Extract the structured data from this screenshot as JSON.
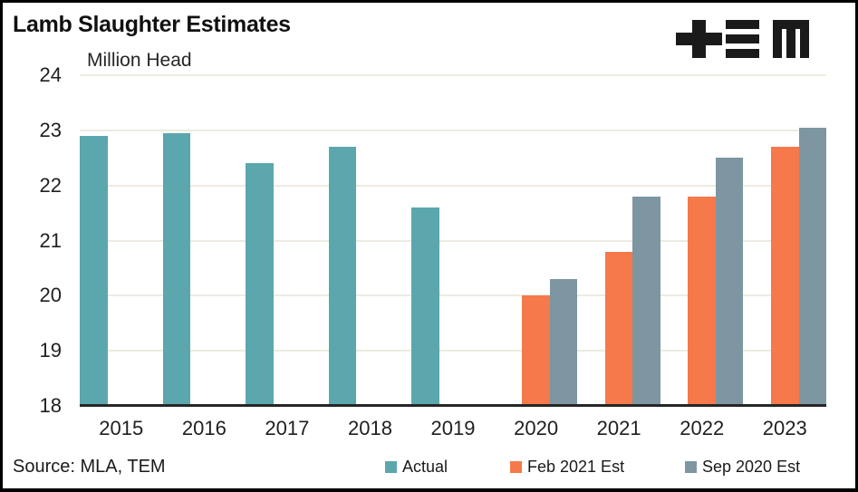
{
  "header": {
    "title": "Lamb Slaughter Estimates",
    "logo_name": "tem-logo"
  },
  "footer": {
    "source": "Source: MLA, TEM"
  },
  "colors": {
    "actual": "#5BA7AD",
    "feb_2021_est": "#F5794A",
    "sep_2020_est": "#7D96A2",
    "gridline": "#EDEBE0",
    "axis": "#262626",
    "logo": "#1a1a1a"
  },
  "chart_data": {
    "type": "bar",
    "title": "Lamb Slaughter Estimates",
    "xlabel": "",
    "ylabel": "Million Head",
    "categories": [
      "2015",
      "2016",
      "2017",
      "2018",
      "2019",
      "2020",
      "2021",
      "2022",
      "2023"
    ],
    "series": [
      {
        "name": "Actual",
        "color": "#5BA7AD",
        "values": [
          22.9,
          22.95,
          22.4,
          22.7,
          21.6,
          null,
          null,
          null,
          null
        ]
      },
      {
        "name": "Feb 2021 Est",
        "color": "#F5794A",
        "values": [
          null,
          null,
          null,
          null,
          null,
          20.0,
          20.8,
          21.8,
          22.7
        ]
      },
      {
        "name": "Sep 2020 Est",
        "color": "#7D96A2",
        "values": [
          null,
          null,
          null,
          null,
          null,
          20.3,
          21.8,
          22.5,
          23.05
        ]
      }
    ],
    "ylim": [
      18,
      24
    ],
    "yticks": [
      18,
      19,
      20,
      21,
      22,
      23,
      24
    ],
    "grid": true,
    "legend_position": "bottom"
  }
}
